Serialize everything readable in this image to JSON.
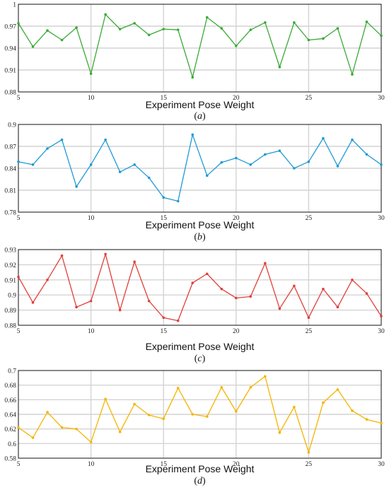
{
  "chart_data": [
    {
      "type": "line",
      "caption_open": "(",
      "caption_letter": "a",
      "caption_close": ")",
      "xlabel": "Experiment Pose Weight",
      "ylabel": "",
      "xlim": [
        5,
        30
      ],
      "ylim": [
        0.88,
        1.0
      ],
      "xticks": [
        5,
        10,
        15,
        20,
        25,
        30
      ],
      "yticks": [
        "0.88",
        "0.91",
        "0.94",
        "0.97",
        "1"
      ],
      "grid": true,
      "color": "#3aaa35",
      "series": [
        {
          "x": [
            5,
            6,
            7,
            8,
            9,
            10,
            11,
            12,
            13,
            14,
            15,
            16,
            17,
            18,
            19,
            20,
            21,
            22,
            23,
            24,
            25,
            26,
            27,
            28,
            29,
            30
          ],
          "y": [
            0.974,
            0.942,
            0.964,
            0.951,
            0.968,
            0.905,
            0.986,
            0.966,
            0.974,
            0.958,
            0.966,
            0.965,
            0.9,
            0.982,
            0.967,
            0.943,
            0.965,
            0.975,
            0.914,
            0.975,
            0.951,
            0.953,
            0.967,
            0.904,
            0.976,
            0.957
          ]
        }
      ]
    },
    {
      "type": "line",
      "caption_open": "(",
      "caption_letter": "b",
      "caption_close": ")",
      "xlabel": "Experiment Pose Weight",
      "ylabel": "",
      "xlim": [
        5,
        30
      ],
      "ylim": [
        0.78,
        0.9
      ],
      "xticks": [
        5,
        10,
        15,
        20,
        25,
        30
      ],
      "yticks": [
        "0.78",
        "0.81",
        "0.84",
        "0.87",
        "0.9"
      ],
      "grid": true,
      "color": "#1f9ad6",
      "series": [
        {
          "x": [
            5,
            6,
            7,
            8,
            9,
            10,
            11,
            12,
            13,
            14,
            15,
            16,
            17,
            18,
            19,
            20,
            21,
            22,
            23,
            24,
            25,
            26,
            27,
            28,
            29,
            30
          ],
          "y": [
            0.849,
            0.845,
            0.867,
            0.879,
            0.815,
            0.845,
            0.879,
            0.835,
            0.845,
            0.827,
            0.8,
            0.795,
            0.886,
            0.83,
            0.848,
            0.854,
            0.845,
            0.859,
            0.864,
            0.84,
            0.849,
            0.881,
            0.843,
            0.879,
            0.859,
            0.845
          ]
        }
      ]
    },
    {
      "type": "line",
      "caption_open": "(",
      "caption_letter": "c",
      "caption_close": ")",
      "xlabel": "Experiment Pose Weight",
      "ylabel": "",
      "xlim": [
        5,
        30
      ],
      "ylim": [
        0.88,
        0.93
      ],
      "xticks": [
        5,
        10,
        15,
        20,
        25,
        30
      ],
      "yticks": [
        "0.88",
        "0.89",
        "0.9",
        "0.91",
        "0.92",
        "0.93"
      ],
      "grid": true,
      "color": "#e0403a",
      "series": [
        {
          "x": [
            5,
            6,
            7,
            8,
            9,
            10,
            11,
            12,
            13,
            14,
            15,
            16,
            17,
            18,
            19,
            20,
            21,
            22,
            23,
            24,
            25,
            26,
            27,
            28,
            29,
            30
          ],
          "y": [
            0.912,
            0.895,
            0.91,
            0.926,
            0.892,
            0.896,
            0.927,
            0.89,
            0.922,
            0.896,
            0.885,
            0.883,
            0.908,
            0.914,
            0.904,
            0.898,
            0.899,
            0.921,
            0.891,
            0.906,
            0.885,
            0.904,
            0.892,
            0.91,
            0.901,
            0.886
          ]
        }
      ]
    },
    {
      "type": "line",
      "caption_open": "(",
      "caption_letter": "d",
      "caption_close": ")",
      "xlabel": "Experiment Pose Weight",
      "ylabel": "",
      "xlim": [
        5,
        30
      ],
      "ylim": [
        0.58,
        0.7
      ],
      "xticks": [
        5,
        10,
        15,
        20,
        25,
        30
      ],
      "yticks": [
        "0.58",
        "0.6",
        "0.62",
        "0.64",
        "0.66",
        "0.68",
        "0.7"
      ],
      "grid": true,
      "color": "#f5b400",
      "series": [
        {
          "x": [
            5,
            6,
            7,
            8,
            9,
            10,
            11,
            12,
            13,
            14,
            15,
            16,
            17,
            18,
            19,
            20,
            21,
            22,
            23,
            24,
            25,
            26,
            27,
            28,
            29,
            30
          ],
          "y": [
            0.622,
            0.608,
            0.643,
            0.622,
            0.62,
            0.602,
            0.661,
            0.616,
            0.654,
            0.639,
            0.634,
            0.676,
            0.64,
            0.637,
            0.677,
            0.644,
            0.677,
            0.692,
            0.615,
            0.65,
            0.588,
            0.656,
            0.674,
            0.645,
            0.633,
            0.628
          ]
        }
      ]
    }
  ]
}
